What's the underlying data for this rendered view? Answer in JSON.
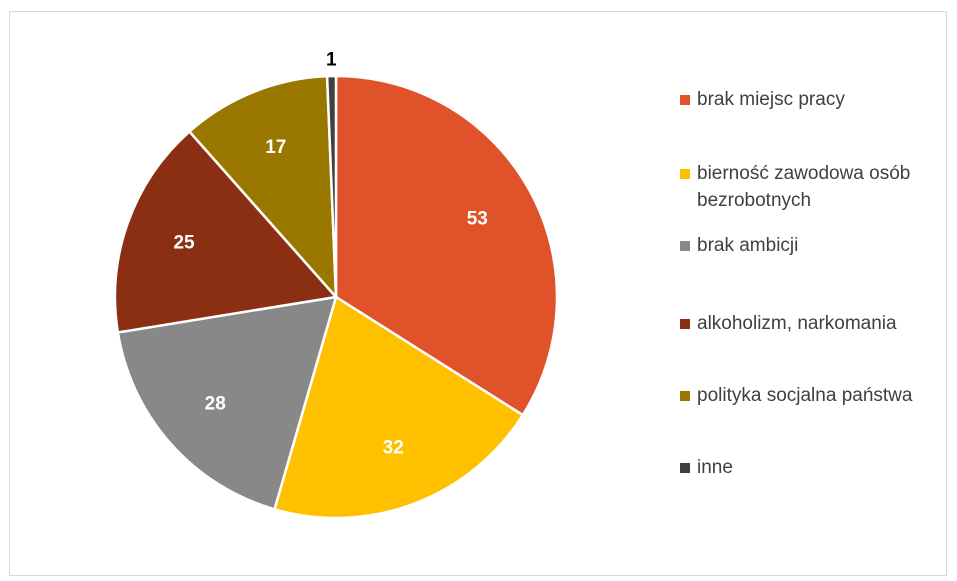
{
  "chart_data": {
    "type": "pie",
    "title": "",
    "slices": [
      {
        "label": "brak miejsc pracy",
        "value": 53,
        "color": "#E0522A"
      },
      {
        "label": "bierność zawodowa osób bezrobotnych",
        "value": 32,
        "color": "#FFC000"
      },
      {
        "label": "brak ambicji",
        "value": 28,
        "color": "#888888"
      },
      {
        "label": "alkoholizm, narkomania",
        "value": 25,
        "color": "#8A2E14"
      },
      {
        "label": "polityka socjalna państwa",
        "value": 17,
        "color": "#9A7800"
      },
      {
        "label": "inne",
        "value": 1,
        "color": "#404040"
      }
    ],
    "data_label_colors": [
      "#ffffff",
      "#ffffff",
      "#ffffff",
      "#ffffff",
      "#ffffff",
      "#000000"
    ],
    "legend_position": "right"
  }
}
